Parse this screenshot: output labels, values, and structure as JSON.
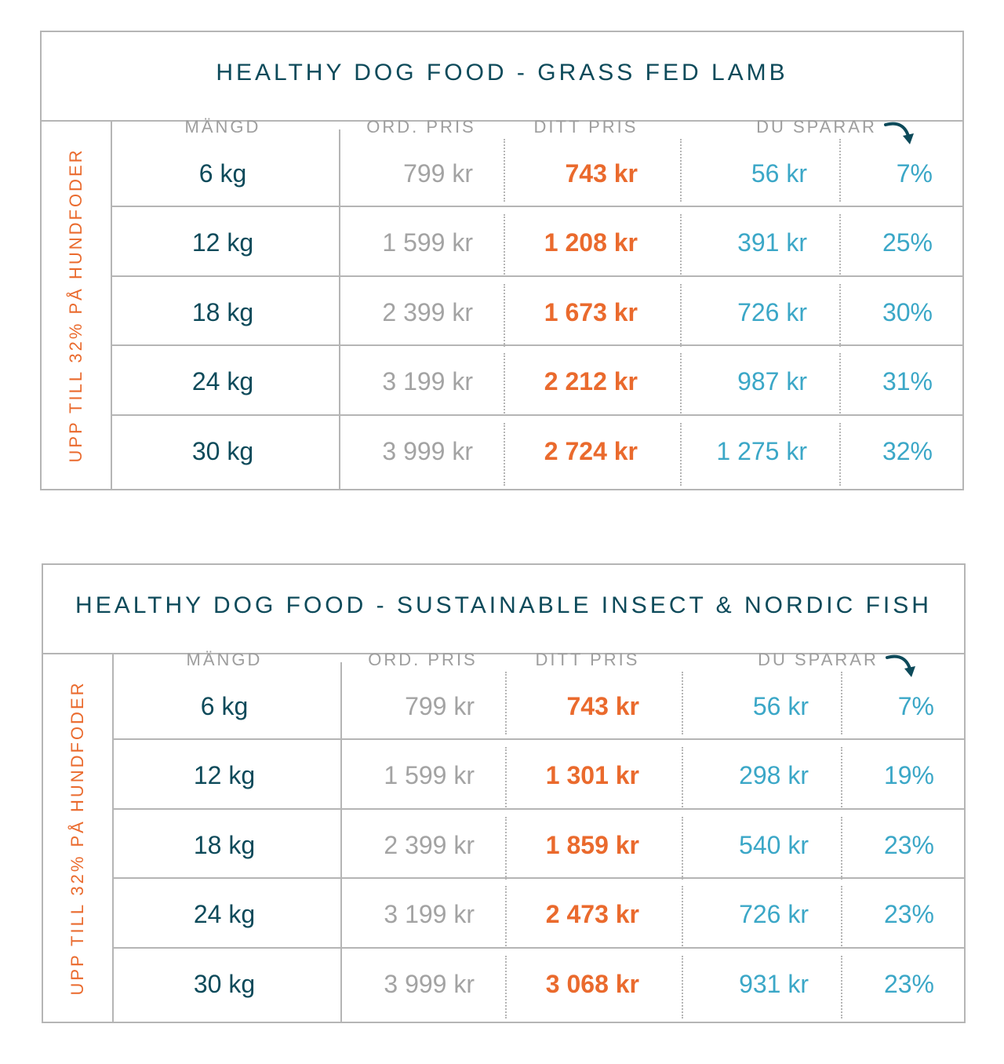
{
  "tables": [
    {
      "title": "HEALTHY DOG FOOD - GRASS FED LAMB",
      "side_label": "UPP TILL 32% PÅ HUNDFODER",
      "headers": {
        "amount": "MÄNGD",
        "ord_price": "ORD. PRIS",
        "your_price": "DITT PRIS",
        "you_save": "DU SPARAR"
      },
      "rows": [
        {
          "amount": "6 kg",
          "ord_price": "799 kr",
          "your_price": "743 kr",
          "saved": "56 kr",
          "percent": "7%"
        },
        {
          "amount": "12 kg",
          "ord_price": "1 599 kr",
          "your_price": "1 208 kr",
          "saved": "391 kr",
          "percent": "25%"
        },
        {
          "amount": "18 kg",
          "ord_price": "2 399 kr",
          "your_price": "1 673 kr",
          "saved": "726 kr",
          "percent": "30%"
        },
        {
          "amount": "24 kg",
          "ord_price": "3 199 kr",
          "your_price": "2 212 kr",
          "saved": "987 kr",
          "percent": "31%"
        },
        {
          "amount": "30 kg",
          "ord_price": "3 999 kr",
          "your_price": "2 724 kr",
          "saved": "1 275 kr",
          "percent": "32%"
        }
      ]
    },
    {
      "title": "HEALTHY DOG FOOD - SUSTAINABLE INSECT & NORDIC FISH",
      "side_label": "UPP TILL 32% PÅ HUNDFODER",
      "headers": {
        "amount": "MÄNGD",
        "ord_price": "ORD. PRIS",
        "your_price": "DITT PRIS",
        "you_save": "DU SPARAR"
      },
      "rows": [
        {
          "amount": "6 kg",
          "ord_price": "799 kr",
          "your_price": "743 kr",
          "saved": "56 kr",
          "percent": "7%"
        },
        {
          "amount": "12 kg",
          "ord_price": "1 599 kr",
          "your_price": "1 301 kr",
          "saved": "298 kr",
          "percent": "19%"
        },
        {
          "amount": "18 kg",
          "ord_price": "2 399 kr",
          "your_price": "1 859 kr",
          "saved": "540 kr",
          "percent": "23%"
        },
        {
          "amount": "24 kg",
          "ord_price": "3 199 kr",
          "your_price": "2 473 kr",
          "saved": "726 kr",
          "percent": "23%"
        },
        {
          "amount": "30 kg",
          "ord_price": "3 999 kr",
          "your_price": "3 068 kr",
          "saved": "931 kr",
          "percent": "23%"
        }
      ]
    }
  ],
  "colors": {
    "title": "#0d4a5a",
    "amount": "#0d4a5a",
    "ord_price": "#a3a3a3",
    "your_price": "#ea6a2d",
    "saved": "#3ba7c7",
    "side_label": "#ea6a2d",
    "border": "#b5b5b5"
  },
  "icons": {
    "header_arrow": "curved-arrow-down-icon"
  }
}
